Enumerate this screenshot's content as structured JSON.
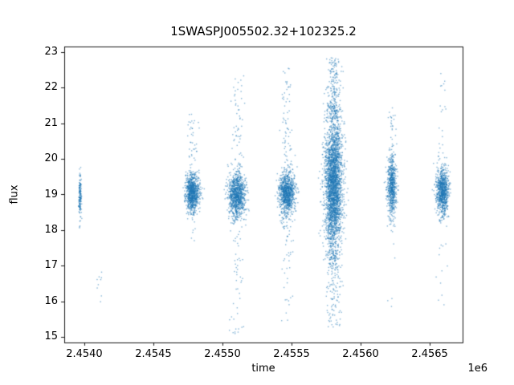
{
  "figure": {
    "title": "1SWASPJ005502.32+102325.2",
    "xlabel": "time",
    "ylabel": "flux",
    "x_offset_label": "1e6"
  },
  "chart_data": {
    "type": "scatter",
    "title": "1SWASPJ005502.32+102325.2",
    "xlabel": "time",
    "ylabel": "flux",
    "x_offset_label": "1e6",
    "legend": "none",
    "grid": false,
    "xlim": [
      2453855,
      2456738
    ],
    "ylim": [
      14.85,
      23.15
    ],
    "xticks": [
      2454000,
      2454500,
      2455000,
      2455500,
      2456000,
      2456500
    ],
    "xtick_labels": [
      "2.4540",
      "2.4545",
      "2.4550",
      "2.4555",
      "2.4560",
      "2.4565"
    ],
    "yticks": [
      15,
      16,
      17,
      18,
      19,
      20,
      21,
      22,
      23
    ],
    "ytick_labels": [
      "15",
      "16",
      "17",
      "18",
      "19",
      "20",
      "21",
      "22",
      "23"
    ],
    "marker_color": "#1f77b4",
    "marker_alpha": 0.55,
    "marker_size": 1.4,
    "clusters": [
      {
        "t_center": 2453965,
        "t_sigma": 5,
        "core_n": 150,
        "flux_mu": 19.0,
        "flux_sigma": 0.28,
        "up_n": 2,
        "up_max": 19.9,
        "down_n": 3,
        "down_min": 18.1
      },
      {
        "t_center": 2454105,
        "t_sigma": 10,
        "core_n": 9,
        "flux_mu": 16.3,
        "flux_sigma": 0.33,
        "up_n": 0,
        "up_max": 16.9,
        "down_n": 0,
        "down_min": 15.9
      },
      {
        "t_center": 2454778,
        "t_sigma": 25,
        "core_n": 900,
        "flux_mu": 19.05,
        "flux_sigma": 0.26,
        "up_n": 45,
        "up_max": 21.35,
        "down_n": 14,
        "down_min": 17.65
      },
      {
        "t_center": 2455100,
        "t_sigma": 30,
        "core_n": 1000,
        "flux_mu": 19.0,
        "flux_sigma": 0.3,
        "up_n": 60,
        "up_max": 22.35,
        "down_n": 55,
        "down_min": 15.1
      },
      {
        "t_center": 2455462,
        "t_sigma": 28,
        "core_n": 1000,
        "flux_mu": 19.05,
        "flux_sigma": 0.3,
        "up_n": 70,
        "up_max": 22.6,
        "down_n": 45,
        "down_min": 15.45
      },
      {
        "t_center": 2455800,
        "t_sigma": 32,
        "core_n": 2800,
        "flux_mu": 19.3,
        "flux_sigma": 0.92,
        "up_n": 200,
        "up_max": 22.85,
        "down_n": 150,
        "down_min": 15.3
      },
      {
        "t_center": 2456222,
        "t_sigma": 17,
        "core_n": 650,
        "flux_mu": 19.25,
        "flux_sigma": 0.42,
        "up_n": 25,
        "up_max": 21.6,
        "down_n": 10,
        "down_min": 15.35
      },
      {
        "t_center": 2456588,
        "t_sigma": 22,
        "core_n": 850,
        "flux_mu": 19.1,
        "flux_sigma": 0.33,
        "up_n": 22,
        "up_max": 22.75,
        "down_n": 14,
        "down_min": 15.9
      }
    ]
  }
}
